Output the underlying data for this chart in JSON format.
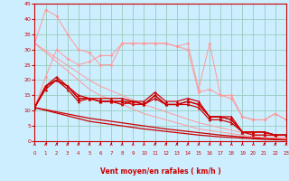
{
  "x": [
    0,
    1,
    2,
    3,
    4,
    5,
    6,
    7,
    8,
    9,
    10,
    11,
    12,
    13,
    14,
    15,
    16,
    17,
    18,
    19,
    20,
    21,
    22,
    23
  ],
  "gusts_jagged": [
    32,
    43,
    41,
    35,
    30,
    29,
    25,
    25,
    32,
    32,
    32,
    32,
    32,
    31,
    32,
    17,
    32,
    15,
    15,
    8,
    7,
    7,
    9,
    7
  ],
  "gusts_lower_jagged": [
    11,
    21,
    30,
    27,
    25,
    26,
    28,
    28,
    32,
    32,
    32,
    32,
    32,
    31,
    30,
    16,
    17,
    15,
    14,
    8,
    7,
    7,
    9,
    7
  ],
  "trend_line1": [
    32,
    29.6,
    27.2,
    24.8,
    22.4,
    20,
    18,
    16.5,
    15,
    13.5,
    12,
    10.8,
    9.6,
    8.4,
    7.2,
    6,
    5.2,
    4.4,
    3.6,
    2.8,
    2.4,
    2.0,
    1.6,
    1.2
  ],
  "trend_line2": [
    32,
    29.0,
    26.0,
    23.0,
    20.0,
    17,
    15,
    13.5,
    12,
    10.5,
    9,
    8.0,
    7.0,
    6.0,
    5.0,
    4.0,
    3.5,
    3.0,
    2.5,
    2.0,
    1.5,
    1.2,
    1.0,
    0.8
  ],
  "trend_line3": [
    11,
    10.3,
    9.6,
    8.9,
    8.2,
    7.5,
    7.0,
    6.5,
    6.0,
    5.5,
    5.0,
    4.5,
    4.0,
    3.6,
    3.2,
    2.8,
    2.4,
    2.0,
    1.7,
    1.4,
    1.1,
    0.9,
    0.7,
    0.5
  ],
  "trend_line4": [
    11,
    10.1,
    9.2,
    8.3,
    7.4,
    6.5,
    6.0,
    5.5,
    5.0,
    4.5,
    4.0,
    3.6,
    3.2,
    2.8,
    2.4,
    2.0,
    1.7,
    1.4,
    1.2,
    1.0,
    0.8,
    0.6,
    0.5,
    0.4
  ],
  "mean1": [
    11,
    18,
    20,
    18,
    14,
    14,
    13,
    13,
    13,
    13,
    12,
    15,
    12,
    12,
    13,
    12,
    8,
    8,
    7,
    3,
    3,
    3,
    2,
    2
  ],
  "mean2": [
    11,
    17,
    20,
    17,
    13,
    14,
    13,
    13,
    12,
    13,
    12,
    14,
    12,
    12,
    12,
    11,
    7,
    7,
    6,
    3,
    2,
    2,
    2,
    2
  ],
  "mean3": [
    11,
    18,
    21,
    18,
    15,
    14,
    14,
    14,
    14,
    13,
    13,
    16,
    13,
    13,
    14,
    13,
    8,
    8,
    8,
    3,
    3,
    3,
    2,
    2
  ],
  "mean4": [
    11,
    18,
    20,
    18,
    14,
    14,
    13,
    13,
    13,
    12,
    12,
    15,
    12,
    12,
    13,
    12,
    8,
    8,
    7,
    3,
    3,
    3,
    2,
    2
  ],
  "bg_color": "#cceeff",
  "grid_color": "#99ccbb",
  "light_red": "#ff9999",
  "dark_red": "#cc0000",
  "xlabel": "Vent moyen/en rafales ( km/h )",
  "xlim": [
    0,
    23
  ],
  "ylim": [
    0,
    45
  ],
  "yticks": [
    0,
    5,
    10,
    15,
    20,
    25,
    30,
    35,
    40,
    45
  ],
  "xticks": [
    0,
    1,
    2,
    3,
    4,
    5,
    6,
    7,
    8,
    9,
    10,
    11,
    12,
    13,
    14,
    15,
    16,
    17,
    18,
    19,
    20,
    21,
    22,
    23
  ]
}
